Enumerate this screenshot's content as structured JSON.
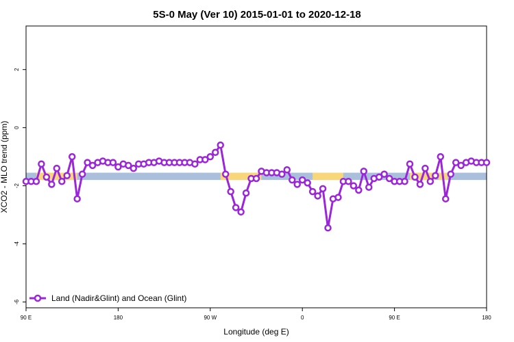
{
  "chart_data": {
    "type": "line",
    "title": "5S-0 May (Ver 10)   2015-01-01 to 2020-12-18",
    "xlabel": "Longitude (deg E)",
    "ylabel": "XCO2 - MLO trend (ppm)",
    "x_ticks": [
      {
        "pos": 0,
        "label": "90 E"
      },
      {
        "pos": 90,
        "label": "180"
      },
      {
        "pos": 180,
        "label": "90 W"
      },
      {
        "pos": 270,
        "label": "0"
      },
      {
        "pos": 360,
        "label": "90 E"
      },
      {
        "pos": 450,
        "label": "180"
      }
    ],
    "y_ticks": [
      2,
      0,
      -2,
      -4,
      -6
    ],
    "xlim": [
      0,
      450
    ],
    "ylim": [
      -6.2,
      3.5
    ],
    "grid": false,
    "legend": {
      "placement": "bottom-left",
      "entries": [
        "Land (Nadir&Glint) and Ocean (Glint)"
      ]
    },
    "colors": {
      "series": "#9b25d9",
      "ocean_band": "#a9bfdb",
      "land_band": "#f7d77a"
    },
    "surface_band": {
      "y_range": [
        -1.8,
        -1.55
      ],
      "land_segments": [
        [
          10,
          50
        ],
        [
          190,
          230
        ],
        [
          280,
          310
        ],
        [
          375,
          400
        ],
        [
          403,
          412
        ]
      ]
    },
    "series": [
      {
        "name": "Land (Nadir&Glint) and Ocean (Glint)",
        "x": [
          0,
          5,
          10,
          15,
          20,
          25,
          30,
          35,
          40,
          45,
          50,
          55,
          60,
          65,
          70,
          75,
          80,
          85,
          90,
          95,
          100,
          105,
          110,
          115,
          120,
          125,
          130,
          135,
          140,
          145,
          150,
          155,
          160,
          165,
          170,
          175,
          180,
          185,
          190,
          195,
          200,
          205,
          210,
          215,
          220,
          225,
          230,
          235,
          240,
          245,
          250,
          255,
          260,
          265,
          270,
          275,
          280,
          285,
          290,
          295,
          300,
          305,
          310,
          315,
          320,
          325,
          330,
          335,
          340,
          345,
          350,
          355,
          360,
          365,
          370,
          375,
          380,
          385,
          390,
          395,
          400,
          405,
          410,
          415,
          420,
          425,
          430,
          435,
          440,
          445,
          450
        ],
        "values": [
          -1.85,
          -1.85,
          -1.85,
          -1.25,
          -1.7,
          -1.95,
          -1.4,
          -1.85,
          -1.65,
          -1.0,
          -2.45,
          -1.6,
          -1.2,
          -1.3,
          -1.2,
          -1.15,
          -1.2,
          -1.2,
          -1.35,
          -1.25,
          -1.3,
          -1.4,
          -1.25,
          -1.25,
          -1.2,
          -1.2,
          -1.15,
          -1.2,
          -1.2,
          -1.2,
          -1.2,
          -1.2,
          -1.2,
          -1.25,
          -1.1,
          -1.1,
          -1.0,
          -0.85,
          -0.6,
          -1.6,
          -2.2,
          -2.75,
          -2.9,
          -2.25,
          -1.75,
          -1.75,
          -1.5,
          -1.55,
          -1.55,
          -1.55,
          -1.6,
          -1.45,
          -1.8,
          -1.95,
          -1.8,
          -1.9,
          -2.2,
          -2.35,
          -2.1,
          -3.45,
          -2.45,
          -2.4,
          -1.85,
          -1.85,
          -2.0,
          -2.15,
          -1.5,
          -2.05,
          -1.75,
          -1.7,
          -1.6,
          -1.75,
          -1.85,
          -1.85,
          -1.85,
          -1.25,
          -1.7,
          -1.95,
          -1.4,
          -1.85,
          -1.65,
          -1.0,
          -2.45,
          -1.6,
          -1.2,
          -1.3,
          -1.2,
          -1.15,
          -1.2,
          -1.2,
          -1.2
        ]
      }
    ]
  }
}
